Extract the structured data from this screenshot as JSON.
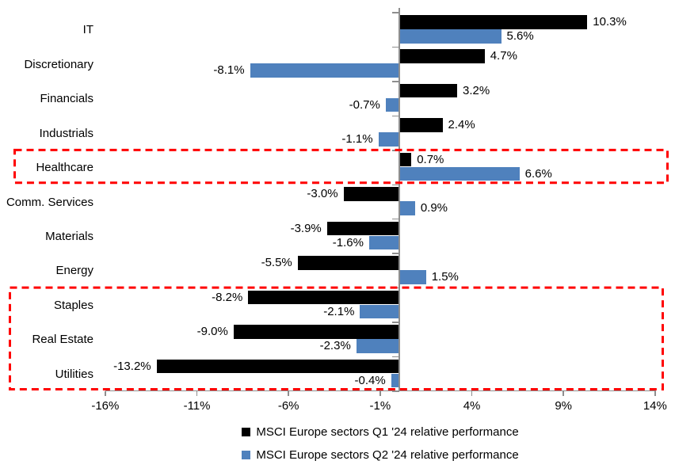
{
  "chart_data": {
    "type": "bar",
    "orientation": "horizontal",
    "title": "",
    "categories": [
      "IT",
      "Discretionary",
      "Financials",
      "Industrials",
      "Healthcare",
      "Comm. Services",
      "Materials",
      "Energy",
      "Staples",
      "Real Estate",
      "Utilities"
    ],
    "series": [
      {
        "name": "MSCI Europe sectors Q1 '24 relative performance",
        "color": "#000000",
        "values": [
          10.3,
          4.7,
          3.2,
          2.4,
          0.7,
          -3.0,
          -3.9,
          -5.5,
          -8.2,
          -9.0,
          -13.2
        ],
        "labels": [
          "10.3%",
          "4.7%",
          "3.2%",
          "2.4%",
          "0.7%",
          "-3.0%",
          "-3.9%",
          "-5.5%",
          "-8.2%",
          "-9.0%",
          "-13.2%"
        ]
      },
      {
        "name": "MSCI Europe sectors Q2 '24 relative performance",
        "color": "#4F81BD",
        "values": [
          5.6,
          -8.1,
          -0.7,
          -1.1,
          6.6,
          0.9,
          -1.6,
          1.5,
          -2.1,
          -2.3,
          -0.4
        ],
        "labels": [
          "5.6%",
          "-8.1%",
          "-0.7%",
          "-1.1%",
          "6.6%",
          "0.9%",
          "-1.6%",
          "1.5%",
          "-2.1%",
          "-2.3%",
          "-0.4%"
        ]
      }
    ],
    "x_axis": {
      "min": -16,
      "max": 14,
      "tick_values": [
        -16,
        -11,
        -6,
        -1,
        4,
        9,
        14
      ],
      "tick_labels": [
        "-16%",
        "-11%",
        "-6%",
        "-1%",
        "4%",
        "9%",
        "14%"
      ],
      "unit": "%"
    },
    "grid": false,
    "legend_position": "bottom",
    "highlights": [
      {
        "name": "healthcare-highlight",
        "from_category": "Healthcare",
        "to_category": "Healthcare",
        "color": "#FF0000",
        "style": "dashed"
      },
      {
        "name": "staples-to-utilities-highlight",
        "from_category": "Staples",
        "to_category": "Utilities",
        "color": "#FF0000",
        "style": "dashed"
      }
    ]
  },
  "colors": {
    "axis": "#8E8E8E",
    "text": "#000000",
    "background": "#FFFFFF",
    "highlight": "#FF0000"
  }
}
